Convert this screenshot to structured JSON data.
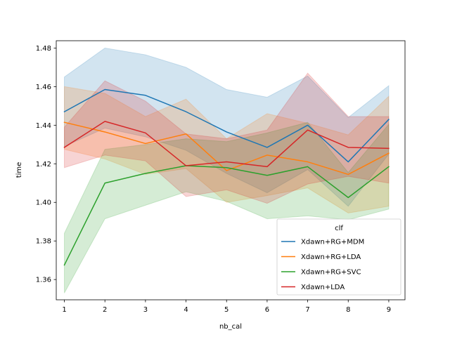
{
  "chart_data": {
    "type": "line",
    "xlabel": "nb_cal",
    "ylabel": "time",
    "x": [
      1,
      2,
      3,
      4,
      5,
      6,
      7,
      8,
      9
    ],
    "xlim": [
      0.8,
      9.4
    ],
    "ylim": [
      1.3495,
      1.4838
    ],
    "xticks": [
      1,
      2,
      3,
      4,
      5,
      6,
      7,
      8,
      9
    ],
    "yticks": [
      1.36,
      1.38,
      1.4,
      1.42,
      1.44,
      1.46,
      1.48
    ],
    "ytick_labels": [
      "1.36",
      "1.38",
      "1.40",
      "1.42",
      "1.44",
      "1.46",
      "1.48"
    ],
    "legend": {
      "title": "clf",
      "placement": "lower-right"
    },
    "series": [
      {
        "name": "Xdawn+RG+MDM",
        "color": "#1f77b4",
        "values": [
          1.447,
          1.4585,
          1.4555,
          1.447,
          1.4365,
          1.4285,
          1.44,
          1.421,
          1.443
        ],
        "ci_low": [
          1.429,
          1.4385,
          1.434,
          1.427,
          1.415,
          1.405,
          1.417,
          1.398,
          1.425
        ],
        "ci_high": [
          1.465,
          1.48,
          1.4765,
          1.47,
          1.4585,
          1.4545,
          1.4655,
          1.444,
          1.4605
        ]
      },
      {
        "name": "Xdawn+RG+LDA",
        "color": "#ff7f0e",
        "values": [
          1.4415,
          1.4365,
          1.4305,
          1.4355,
          1.4165,
          1.4245,
          1.421,
          1.4145,
          1.4255
        ],
        "ci_low": [
          1.4275,
          1.4225,
          1.4145,
          1.4175,
          1.4,
          1.4035,
          1.4075,
          1.3945,
          1.398
        ],
        "ci_high": [
          1.46,
          1.4565,
          1.4445,
          1.4535,
          1.433,
          1.446,
          1.441,
          1.435,
          1.455
        ]
      },
      {
        "name": "Xdawn+RG+SVC",
        "color": "#2ca02c",
        "values": [
          1.3675,
          1.41,
          1.415,
          1.419,
          1.418,
          1.414,
          1.4185,
          1.4025,
          1.4185
        ],
        "ci_low": [
          1.353,
          1.3915,
          1.3985,
          1.4055,
          1.4005,
          1.3915,
          1.393,
          1.391,
          1.3965
        ],
        "ci_high": [
          1.384,
          1.4275,
          1.43,
          1.433,
          1.4315,
          1.436,
          1.4415,
          1.4155,
          1.4405
        ]
      },
      {
        "name": "Xdawn+LDA",
        "color": "#d62728",
        "values": [
          1.4285,
          1.442,
          1.436,
          1.419,
          1.421,
          1.4185,
          1.4375,
          1.4285,
          1.428
        ],
        "ci_low": [
          1.418,
          1.4245,
          1.4215,
          1.403,
          1.4065,
          1.3995,
          1.4095,
          1.4135,
          1.41
        ],
        "ci_high": [
          1.439,
          1.463,
          1.4525,
          1.4355,
          1.433,
          1.4375,
          1.467,
          1.4445,
          1.4445
        ]
      }
    ]
  }
}
